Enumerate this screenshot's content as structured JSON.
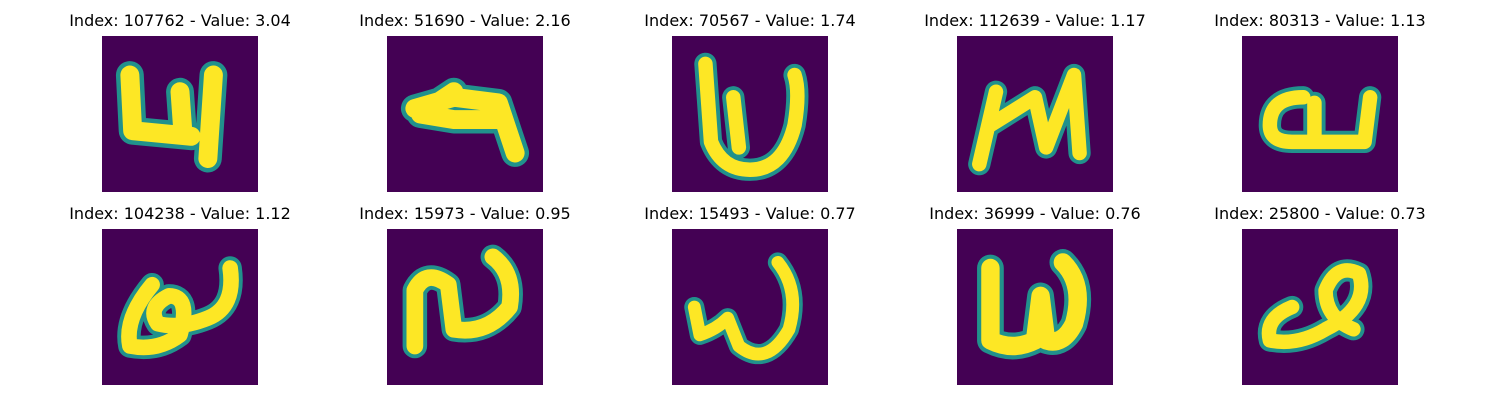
{
  "figure": {
    "background": "#ffffff",
    "colormap": "viridis",
    "colors": {
      "background_cell": "#440154",
      "stroke_core": "#fde725",
      "stroke_edge": "#21918c"
    }
  },
  "panels": [
    {
      "title": "Index: 107762 - Value: 3.04",
      "index": 107762,
      "value": 3.04,
      "glyph": "4-like"
    },
    {
      "title": "Index: 51690 - Value: 2.16",
      "index": 51690,
      "value": 2.16,
      "glyph": "4-like-horizontal"
    },
    {
      "title": "Index: 70567 - Value: 1.74",
      "index": 70567,
      "value": 1.74,
      "glyph": "w-like"
    },
    {
      "title": "Index: 112639 - Value: 1.17",
      "index": 112639,
      "value": 1.17,
      "glyph": "w-like-slanted"
    },
    {
      "title": "Index: 80313 - Value: 1.13",
      "index": 80313,
      "value": 1.13,
      "glyph": "loop-u"
    },
    {
      "title": "Index: 104238 - Value: 1.12",
      "index": 104238,
      "value": 1.12,
      "glyph": "loop-swirl"
    },
    {
      "title": "Index: 15973 - Value: 0.95",
      "index": 15973,
      "value": 0.95,
      "glyph": "n-curve"
    },
    {
      "title": "Index: 15493 - Value: 0.77",
      "index": 15493,
      "value": 0.77,
      "glyph": "w-like-thin"
    },
    {
      "title": "Index: 36999 - Value: 0.76",
      "index": 36999,
      "value": 0.76,
      "glyph": "w-like-bold"
    },
    {
      "title": "Index: 25800 - Value: 0.73",
      "index": 25800,
      "value": 0.73,
      "glyph": "loop-swirl-2"
    }
  ]
}
